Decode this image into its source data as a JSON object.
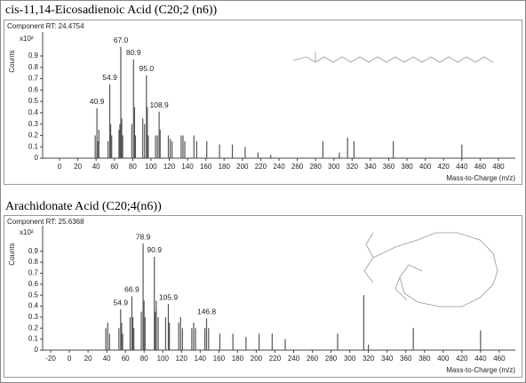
{
  "chart_data": [
    {
      "type": "stem",
      "title": "cis-11,14-Eicosadienoic Acid (C20;2 (n6))",
      "subtitle": "Component RT: 24.4754",
      "y_label": "Counts",
      "y_multiplier": "x10²",
      "x_label": "Mass-to-Charge (m/z)",
      "color": "#555555",
      "x": [
        39,
        40.9,
        41.9,
        43,
        53,
        54.9,
        55.9,
        57,
        65,
        66,
        67.0,
        68,
        69,
        79,
        80.9,
        82,
        83,
        91,
        93,
        95.0,
        96,
        97,
        105,
        107,
        108.9,
        110,
        119,
        121,
        123,
        133,
        135,
        137,
        147,
        150,
        161,
        175,
        189,
        203,
        217,
        231,
        288,
        306,
        315,
        322,
        365,
        440
      ],
      "values": [
        0.2,
        0.44,
        0.15,
        0.25,
        0.15,
        0.65,
        0.3,
        0.2,
        0.25,
        0.3,
        0.98,
        0.35,
        0.2,
        0.3,
        0.87,
        0.45,
        0.2,
        0.35,
        0.3,
        0.73,
        0.45,
        0.2,
        0.2,
        0.2,
        0.41,
        0.25,
        0.2,
        0.17,
        0.15,
        0.2,
        0.2,
        0.15,
        0.2,
        0.15,
        0.15,
        0.12,
        0.12,
        0.1,
        0.05,
        0.03,
        0.15,
        0.05,
        0.18,
        0.15,
        0.15,
        0.12
      ],
      "x_labels": [
        null,
        "40.9",
        null,
        null,
        null,
        "54.9",
        null,
        null,
        null,
        null,
        "67.0",
        null,
        null,
        null,
        "80.9",
        null,
        null,
        null,
        null,
        "95.0",
        null,
        null,
        null,
        null,
        "108.9",
        null,
        null,
        null,
        null,
        null,
        null,
        null,
        null,
        null,
        null,
        null,
        null,
        null,
        null,
        null,
        null,
        null,
        null,
        null,
        null,
        null
      ],
      "xlim": [
        -18.5,
        498.5
      ],
      "xticks": [
        0,
        20,
        40,
        60,
        80,
        100,
        120,
        140,
        160,
        180,
        200,
        220,
        240,
        260,
        280,
        300,
        320,
        340,
        360,
        380,
        400,
        420,
        440,
        460,
        480
      ],
      "ylim": [
        0,
        1.08
      ],
      "yticks": [
        0,
        0.1,
        0.2,
        0.3,
        0.4,
        0.5,
        0.6,
        0.7,
        0.8,
        0.9
      ]
    },
    {
      "type": "stem",
      "title": "Arachidonate Acid (C20;4(n6))",
      "subtitle": "Component RT: 25.6368",
      "y_label": "Counts",
      "y_multiplier": "x10²",
      "x_label": "Mass-to-Charge (m/z)",
      "color": "#555555",
      "x": [
        39,
        41,
        43,
        53,
        54.9,
        55.9,
        57,
        65,
        66.9,
        67.9,
        69,
        77,
        78.9,
        79.9,
        81,
        90.9,
        91.9,
        93,
        95,
        103,
        105.9,
        107,
        117,
        119,
        121,
        131,
        133,
        135,
        145,
        146.8,
        149,
        161,
        175,
        189,
        203,
        217,
        231,
        287,
        315,
        320,
        368,
        440
      ],
      "values": [
        0.2,
        0.25,
        0.15,
        0.2,
        0.37,
        0.25,
        0.15,
        0.3,
        0.49,
        0.3,
        0.2,
        0.35,
        0.97,
        0.45,
        0.3,
        0.85,
        0.35,
        0.45,
        0.3,
        0.3,
        0.42,
        0.25,
        0.25,
        0.3,
        0.2,
        0.2,
        0.25,
        0.2,
        0.2,
        0.29,
        0.2,
        0.15,
        0.15,
        0.12,
        0.15,
        0.15,
        0.1,
        0.15,
        0.5,
        0.05,
        0.2,
        0.18
      ],
      "x_labels": [
        null,
        null,
        null,
        null,
        "54.9",
        null,
        null,
        null,
        "66.9",
        null,
        null,
        null,
        "78.9",
        null,
        null,
        "90.9",
        null,
        null,
        null,
        null,
        "105.9",
        null,
        null,
        null,
        null,
        null,
        null,
        null,
        null,
        "146.8",
        null,
        null,
        null,
        null,
        null,
        null,
        null,
        null,
        null,
        null,
        null,
        null
      ],
      "xlim": [
        -28.6,
        477.2
      ],
      "xticks": [
        -20,
        0,
        20,
        40,
        60,
        80,
        100,
        120,
        140,
        160,
        180,
        200,
        220,
        240,
        260,
        280,
        300,
        320,
        340,
        360,
        380,
        400,
        420,
        440,
        460
      ],
      "ylim": [
        0,
        1.1
      ],
      "yticks": [
        0,
        0.1,
        0.2,
        0.3,
        0.4,
        0.5,
        0.6,
        0.7,
        0.8,
        0.9
      ]
    }
  ]
}
